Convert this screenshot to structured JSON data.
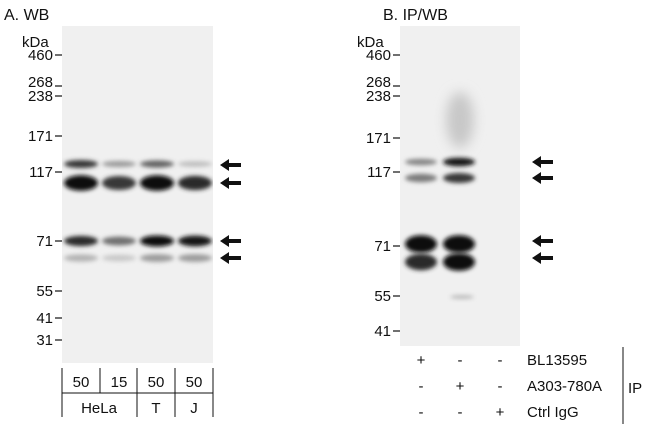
{
  "panel_a": {
    "title": "A. WB",
    "unit": "kDa",
    "markers": [
      "460",
      "268",
      "238",
      "171",
      "117",
      "71",
      "55",
      "41",
      "31"
    ],
    "lanes": [
      {
        "amount": "50",
        "bands": [
          0.8,
          1.0,
          0.85,
          0.25
        ]
      },
      {
        "amount": "15",
        "bands": [
          0.35,
          0.8,
          0.55,
          0.15
        ]
      },
      {
        "amount": "50",
        "bands": [
          0.6,
          1.0,
          1.0,
          0.35
        ]
      },
      {
        "amount": "50",
        "bands": [
          0.2,
          0.85,
          0.95,
          0.35
        ]
      }
    ],
    "cell_lines": [
      "HeLa",
      "T",
      "J"
    ]
  },
  "panel_b": {
    "title": "B. IP/WB",
    "unit": "kDa",
    "markers": [
      "460",
      "268",
      "238",
      "171",
      "117",
      "71",
      "55",
      "41"
    ],
    "lanes": [
      {
        "bands": [
          0.45,
          0.5,
          1.0,
          0.85
        ]
      },
      {
        "bands": [
          0.95,
          0.8,
          1.0,
          1.0
        ]
      },
      {
        "bands": [
          0,
          0,
          0,
          0
        ]
      }
    ],
    "ip_rows": [
      {
        "label": "BL13595",
        "signs": [
          "+",
          "-",
          "-"
        ]
      },
      {
        "label": "A303-780A",
        "signs": [
          "-",
          "+",
          "-"
        ]
      },
      {
        "label": "Ctrl IgG",
        "signs": [
          "-",
          "-",
          "+"
        ]
      }
    ],
    "ip_label": "IP"
  }
}
